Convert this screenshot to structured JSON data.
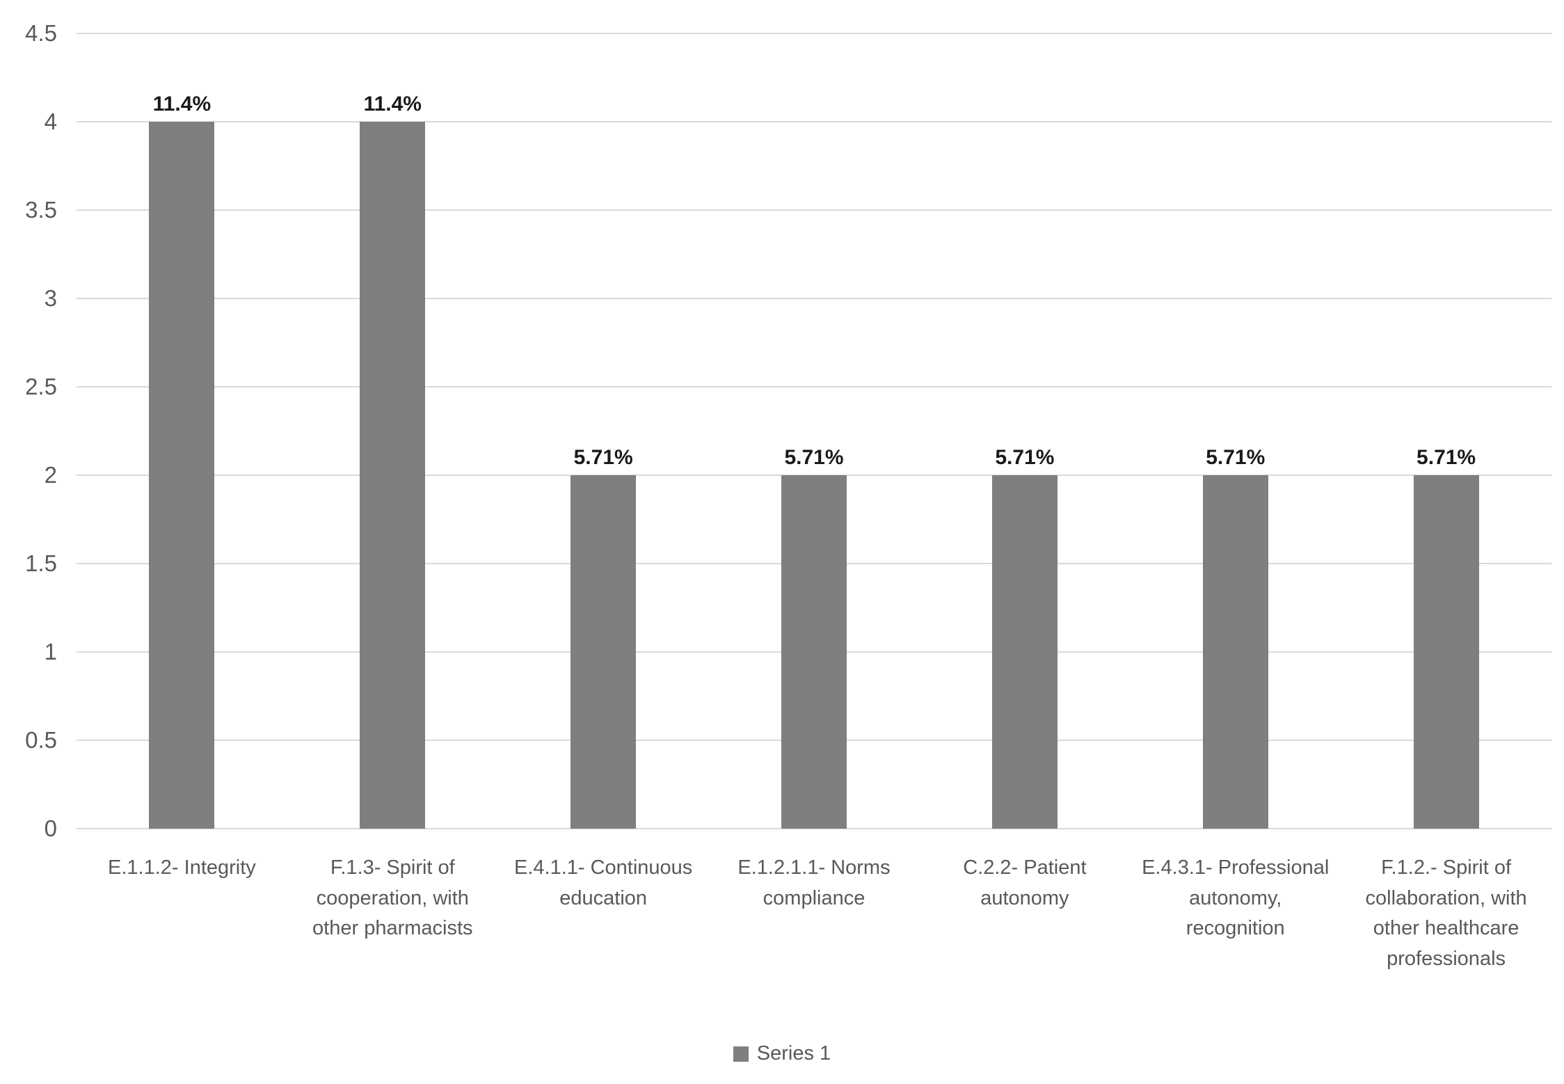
{
  "chart_data": {
    "type": "bar",
    "title": "",
    "xlabel": "",
    "ylabel": "",
    "categories": [
      "E.1.1.2- Integrity",
      "F.1.3- Spirit of cooperation, with other pharmacists",
      "E.4.1.1- Continuous education",
      "E.1.2.1.1- Norms compliance",
      "C.2.2- Patient autonomy",
      "E.4.3.1- Professional autonomy, recognition",
      "F.1.2.- Spirit of collaboration, with other healthcare professionals"
    ],
    "values": [
      4,
      4,
      2,
      2,
      2,
      2,
      2
    ],
    "data_labels": [
      "11.4%",
      "11.4%",
      "5.71%",
      "5.71%",
      "5.71%",
      "5.71%",
      "5.71%"
    ],
    "series_name": "Series 1",
    "ylim": [
      0,
      4.5
    ],
    "yticks": [
      0,
      0.5,
      1,
      1.5,
      2,
      2.5,
      3,
      3.5,
      4,
      4.5
    ],
    "ytick_labels": [
      "0",
      "0.5",
      "1",
      "1.5",
      "2",
      "2.5",
      "3",
      "3.5",
      "4",
      "4.5"
    ],
    "grid": true,
    "legend_position": "bottom",
    "colors": {
      "bar": "#7f7f7f",
      "gridline": "#d9d9d9",
      "axis_text": "#595959",
      "data_label": "#1a1a1a",
      "legend_text": "#595959",
      "background": "#ffffff"
    }
  }
}
